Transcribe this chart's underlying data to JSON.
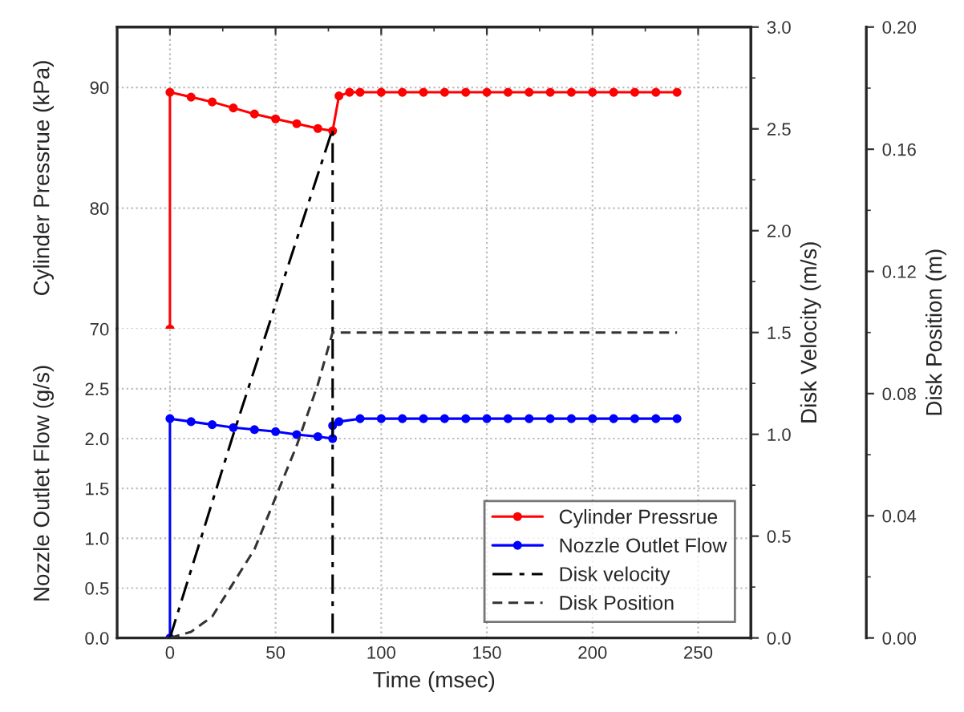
{
  "chart_data": [
    {
      "type": "line",
      "ylabel": "Cylinder Pressrue (kPa)",
      "xlim": [
        -25,
        275
      ],
      "xticks": [
        0,
        50,
        100,
        150,
        200,
        250
      ],
      "ylim": [
        70,
        95
      ],
      "yticks": [
        70,
        80,
        90
      ],
      "grid": true,
      "tick_labels": "y",
      "marker": "circle",
      "series": [
        {
          "name": "Cylinder Pressrue",
          "color": "#ff0000",
          "x": [
            0,
            0,
            10,
            20,
            30,
            40,
            50,
            60,
            70,
            77,
            80,
            85,
            90,
            100,
            110,
            120,
            130,
            140,
            150,
            160,
            170,
            180,
            190,
            200,
            210,
            220,
            230,
            240
          ],
          "values": [
            70,
            89.6,
            89.2,
            88.8,
            88.3,
            87.8,
            87.4,
            87.0,
            86.6,
            86.4,
            89.3,
            89.6,
            89.6,
            89.6,
            89.6,
            89.6,
            89.6,
            89.6,
            89.6,
            89.6,
            89.6,
            89.6,
            89.6,
            89.6,
            89.6,
            89.6,
            89.6,
            89.6
          ]
        }
      ]
    },
    {
      "type": "line",
      "xlabel": "Time (msec)",
      "ylabel": "Nozzle Outlet Flow (g/s)",
      "y2label": "Disk Velocity (m/s)",
      "y3label": "Disk Position (m)",
      "xlim": [
        -25,
        275
      ],
      "xticks": [
        0,
        50,
        100,
        150,
        200,
        250
      ],
      "ylim": [
        0,
        3.1
      ],
      "yticks": [
        {
          "value": 0,
          "label": "0.0"
        },
        {
          "value": 0.5,
          "label": "0.5"
        },
        {
          "value": 1,
          "label": "1.0"
        },
        {
          "value": 1.5,
          "label": "1.5"
        },
        {
          "value": 2,
          "label": "2.0"
        },
        {
          "value": 2.5,
          "label": "2.5"
        }
      ],
      "y2lim": [
        0,
        3
      ],
      "y2ticks": [
        {
          "value": 0,
          "label": "0.0"
        },
        {
          "value": 0.5,
          "label": "0.5"
        },
        {
          "value": 1,
          "label": "1.0"
        },
        {
          "value": 1.5,
          "label": "1.5"
        },
        {
          "value": 2,
          "label": "2.0"
        },
        {
          "value": 2.5,
          "label": "2.5"
        },
        {
          "value": 3,
          "label": "3.0"
        }
      ],
      "y3lim": [
        0,
        0.2
      ],
      "y3ticks": [
        {
          "value": 0,
          "label": "0.00"
        },
        {
          "value": 0.04,
          "label": "0.04"
        },
        {
          "value": 0.08,
          "label": "0.08"
        },
        {
          "value": 0.12,
          "label": "0.12"
        },
        {
          "value": 0.16,
          "label": "0.16"
        },
        {
          "value": 0.2,
          "label": "0.20"
        }
      ],
      "grid": true,
      "legend": "bottom right",
      "series": [
        {
          "name": "Nozzle Outlet Flow",
          "color": "#0000ff",
          "marker": "circle",
          "x": [
            0,
            0,
            10,
            20,
            30,
            40,
            50,
            60,
            70,
            77,
            77,
            80,
            90,
            100,
            110,
            120,
            130,
            140,
            150,
            160,
            170,
            180,
            190,
            200,
            210,
            220,
            230,
            240
          ],
          "values": [
            0,
            2.2,
            2.17,
            2.14,
            2.11,
            2.09,
            2.07,
            2.04,
            2.02,
            2.0,
            2.13,
            2.17,
            2.2,
            2.2,
            2.2,
            2.2,
            2.2,
            2.2,
            2.2,
            2.2,
            2.2,
            2.2,
            2.2,
            2.2,
            2.2,
            2.2,
            2.2,
            2.2
          ]
        },
        {
          "name": "Disk velocity",
          "color": "#000000",
          "axis": "y2",
          "line_style": "dashdot",
          "x": [
            0,
            30,
            77,
            77
          ],
          "values": [
            0,
            1.0,
            2.5,
            0
          ]
        },
        {
          "name": "Disk Position",
          "color": "#333333",
          "axis": "y3",
          "line_style": "dashed",
          "x": [
            0,
            10,
            20,
            30,
            40,
            50,
            60,
            70,
            77,
            240
          ],
          "values": [
            0,
            0.002,
            0.007,
            0.018,
            0.029,
            0.046,
            0.063,
            0.083,
            0.1,
            0.1
          ]
        }
      ]
    }
  ]
}
